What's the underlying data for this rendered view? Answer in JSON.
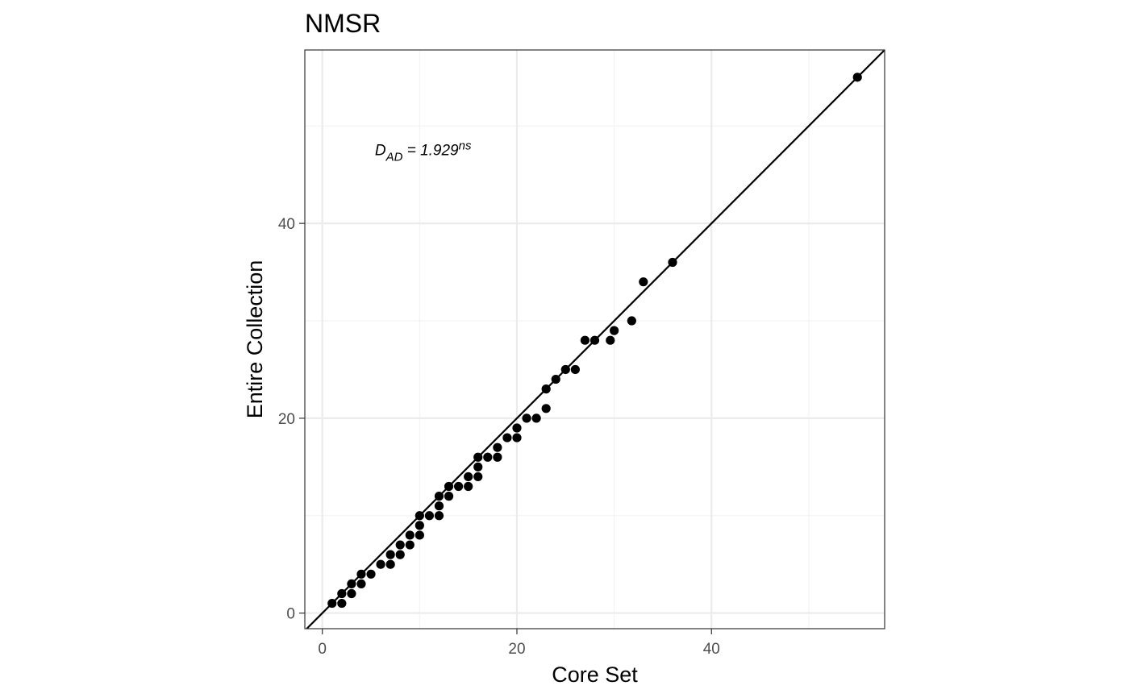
{
  "chart_data": {
    "type": "scatter",
    "title": "NMSR",
    "xlabel": "Core Set",
    "ylabel": "Entire Collection",
    "xlim": [
      -1.8,
      57.8
    ],
    "ylim": [
      -1.6,
      57.8
    ],
    "x_ticks": [
      0,
      20,
      40
    ],
    "y_ticks": [
      0,
      20,
      40
    ],
    "x_tick_labels": [
      "0",
      "20",
      "40"
    ],
    "y_tick_labels": [
      "0",
      "20",
      "40"
    ],
    "grid": true,
    "theme": "black-and-white panel border",
    "reference_line": {
      "type": "identity",
      "slope": 1,
      "intercept": 0
    },
    "annotation": {
      "x": 5.4,
      "y": 47,
      "base": "D",
      "subscript": "AD",
      "text": " = 1.929",
      "superscript": "ns"
    },
    "point_color": "#000000",
    "points": [
      [
        1,
        1
      ],
      [
        2,
        1
      ],
      [
        2,
        2
      ],
      [
        3,
        2
      ],
      [
        3,
        3
      ],
      [
        4,
        3
      ],
      [
        4,
        4
      ],
      [
        5,
        4
      ],
      [
        6,
        5
      ],
      [
        7,
        5
      ],
      [
        7,
        6
      ],
      [
        8,
        6
      ],
      [
        8,
        7
      ],
      [
        9,
        7
      ],
      [
        9,
        8
      ],
      [
        10,
        8
      ],
      [
        10,
        9
      ],
      [
        10,
        10
      ],
      [
        11,
        10
      ],
      [
        12,
        10
      ],
      [
        12,
        11
      ],
      [
        12,
        12
      ],
      [
        13,
        12
      ],
      [
        13,
        13
      ],
      [
        14,
        13
      ],
      [
        15,
        13
      ],
      [
        15,
        14
      ],
      [
        16,
        14
      ],
      [
        16,
        15
      ],
      [
        16,
        16
      ],
      [
        17,
        16
      ],
      [
        18,
        16
      ],
      [
        18,
        17
      ],
      [
        19,
        18
      ],
      [
        20,
        18
      ],
      [
        20,
        19
      ],
      [
        21,
        20
      ],
      [
        22,
        20
      ],
      [
        23,
        21
      ],
      [
        23,
        23
      ],
      [
        24,
        24
      ],
      [
        25,
        25
      ],
      [
        26,
        25
      ],
      [
        27,
        28
      ],
      [
        28,
        28
      ],
      [
        29.6,
        28
      ],
      [
        30,
        29
      ],
      [
        31.8,
        30
      ],
      [
        33,
        34
      ],
      [
        36,
        36
      ],
      [
        55,
        55
      ]
    ]
  }
}
